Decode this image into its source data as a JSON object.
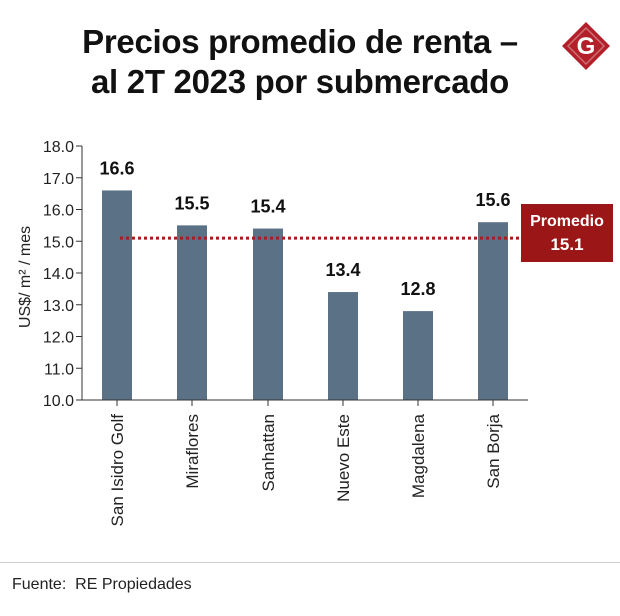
{
  "title_line1": "Precios promedio de renta –",
  "title_line2": "al 2T 2023 por submercado",
  "logo_letter": "G",
  "footer": {
    "label": "Fuente:",
    "source": "RE Propiedades"
  },
  "colors": {
    "bar": "#5b7186",
    "average_line": "#a81c1c",
    "badge_bg": "#9b1717",
    "logo": "#b3202a"
  },
  "chart_data": {
    "type": "bar",
    "title": "Precios promedio de renta – al 2T 2023 por submercado",
    "xlabel": "",
    "ylabel": "US$/ m² / mes",
    "ylim": [
      10.0,
      18.0
    ],
    "yticks": [
      "10.0",
      "11.0",
      "12.0",
      "13.0",
      "14.0",
      "15.0",
      "16.0",
      "17.0",
      "18.0"
    ],
    "categories": [
      "San Isidro Golf",
      "Miraflores",
      "Sanhattan",
      "Nuevo Este",
      "Magdalena",
      "San Borja"
    ],
    "values": [
      16.6,
      15.5,
      15.4,
      13.4,
      12.8,
      15.6
    ],
    "data_labels": [
      "16.6",
      "15.5",
      "15.4",
      "13.4",
      "12.8",
      "15.6"
    ],
    "average": {
      "label": "Promedio",
      "value": 15.1,
      "value_label": "15.1"
    }
  }
}
